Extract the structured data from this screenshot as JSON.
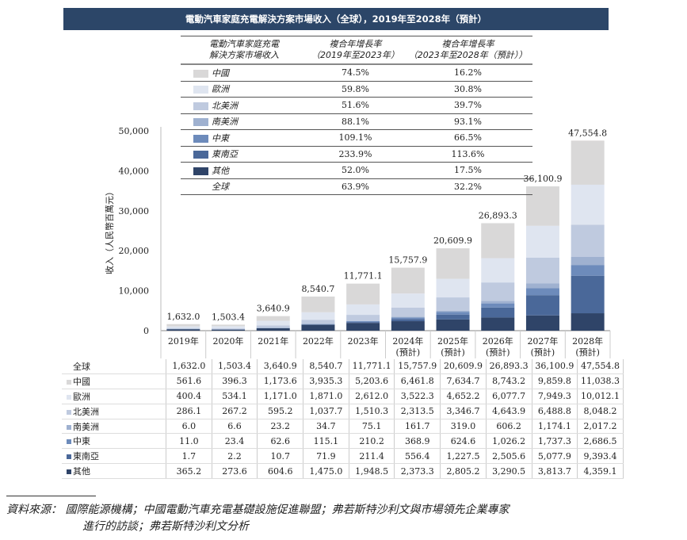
{
  "chart_data": {
    "type": "bar",
    "stacked": true,
    "title": "電動汽車家庭充電解決方案市場收入（全球），2019年至2028年（預計）",
    "ylabel": "收入（人民幣百萬元）",
    "ylim": [
      0,
      50000
    ],
    "yticks": [
      "0",
      "10,000",
      "20,000",
      "30,000",
      "40,000",
      "50,000"
    ],
    "ytick_values": [
      0,
      10000,
      20000,
      30000,
      40000,
      50000
    ],
    "categories": [
      "2019年",
      "2020年",
      "2021年",
      "2022年",
      "2023年",
      "2024年\n(預計)",
      "2025年\n(預計)",
      "2026年\n(預計)",
      "2027年\n(預計)",
      "2028年\n(預計)"
    ],
    "category_lines": [
      [
        "2019年",
        ""
      ],
      [
        "2020年",
        ""
      ],
      [
        "2021年",
        ""
      ],
      [
        "2022年",
        ""
      ],
      [
        "2023年",
        ""
      ],
      [
        "2024年",
        "(預計)"
      ],
      [
        "2025年",
        "(預計)"
      ],
      [
        "2026年",
        "(預計)"
      ],
      [
        "2027年",
        "(預計)"
      ],
      [
        "2028年",
        "(預計)"
      ]
    ],
    "totals": [
      1632.0,
      1503.4,
      3640.9,
      8540.7,
      11771.1,
      15757.9,
      20609.9,
      26893.3,
      36100.9,
      47554.8
    ],
    "total_labels": [
      "1,632.0",
      "1,503.4",
      "3,640.9",
      "8,540.7",
      "11,771.1",
      "15,757.9",
      "20,609.9",
      "26,893.3",
      "36,100.9",
      "47,554.8"
    ],
    "series": [
      {
        "name": "其他",
        "color": "#2f4468",
        "values": [
          365.2,
          273.6,
          604.6,
          1475.0,
          1948.5,
          2373.3,
          2805.2,
          3290.5,
          3813.7,
          4359.1
        ]
      },
      {
        "name": "東南亞",
        "color": "#4a6899",
        "values": [
          1.7,
          2.2,
          10.7,
          71.9,
          211.4,
          556.4,
          1227.5,
          2505.6,
          5077.9,
          9393.4
        ]
      },
      {
        "name": "中東",
        "color": "#6d8bbb",
        "values": [
          11.0,
          23.4,
          62.6,
          115.1,
          210.2,
          368.9,
          624.6,
          1026.2,
          1737.3,
          2686.5
        ]
      },
      {
        "name": "南美洲",
        "color": "#9fb1d0",
        "values": [
          6.0,
          6.6,
          23.2,
          34.7,
          75.1,
          161.7,
          319.0,
          606.2,
          1174.1,
          2017.2
        ]
      },
      {
        "name": "北美洲",
        "color": "#bfcadf",
        "values": [
          286.1,
          267.2,
          595.2,
          1037.7,
          1510.3,
          2313.5,
          3346.7,
          4643.9,
          6488.8,
          8048.2
        ]
      },
      {
        "name": "歐洲",
        "color": "#dfe5f0",
        "values": [
          400.4,
          534.1,
          1171.0,
          1871.0,
          2612.0,
          3522.3,
          4652.2,
          6077.7,
          7949.3,
          10012.1
        ]
      },
      {
        "name": "中國",
        "color": "#d9d8d8",
        "values": [
          561.6,
          396.3,
          1173.6,
          3935.3,
          5203.6,
          6461.8,
          7634.7,
          8743.2,
          9859.8,
          11038.3
        ]
      }
    ]
  },
  "legend_table": {
    "headers": [
      "電動汽車家庭充電\n解決方案市場收入",
      "複合年增長率\n（2019年至2023年）",
      "複合年增長率\n（2023年至2028年（預計））"
    ],
    "rows": [
      {
        "name": "中國",
        "color": "#d9d8d8",
        "cagr1": "74.5%",
        "cagr2": "16.2%"
      },
      {
        "name": "歐洲",
        "color": "#dfe5f0",
        "cagr1": "59.8%",
        "cagr2": "30.8%"
      },
      {
        "name": "北美洲",
        "color": "#bfcadf",
        "cagr1": "51.6%",
        "cagr2": "39.7%"
      },
      {
        "name": "南美洲",
        "color": "#9fb1d0",
        "cagr1": "88.1%",
        "cagr2": "93.1%"
      },
      {
        "name": "中東",
        "color": "#6d8bbb",
        "cagr1": "109.1%",
        "cagr2": "66.5%"
      },
      {
        "name": "東南亞",
        "color": "#4a6899",
        "cagr1": "233.9%",
        "cagr2": "113.6%"
      },
      {
        "name": "其他",
        "color": "#2f4468",
        "cagr1": "52.0%",
        "cagr2": "17.5%"
      },
      {
        "name": "全球",
        "color": null,
        "cagr1": "63.9%",
        "cagr2": "32.2%"
      }
    ]
  },
  "data_table": [
    {
      "name": "全球",
      "color": null,
      "values": [
        "1,632.0",
        "1,503.4",
        "3,640.9",
        "8,540.7",
        "11,771.1",
        "15,757.9",
        "20,609.9",
        "26,893.3",
        "36,100.9",
        "47,554.8"
      ]
    },
    {
      "name": "中國",
      "color": "#d9d8d8",
      "values": [
        "561.6",
        "396.3",
        "1,173.6",
        "3,935.3",
        "5,203.6",
        "6,461.8",
        "7,634.7",
        "8,743.2",
        "9,859.8",
        "11,038.3"
      ]
    },
    {
      "name": "歐洲",
      "color": "#dfe5f0",
      "values": [
        "400.4",
        "534.1",
        "1,171.0",
        "1,871.0",
        "2,612.0",
        "3,522.3",
        "4,652.2",
        "6,077.7",
        "7,949.3",
        "10,012.1"
      ]
    },
    {
      "name": "北美洲",
      "color": "#bfcadf",
      "values": [
        "286.1",
        "267.2",
        "595.2",
        "1,037.7",
        "1,510.3",
        "2,313.5",
        "3,346.7",
        "4,643.9",
        "6,488.8",
        "8,048.2"
      ]
    },
    {
      "name": "南美洲",
      "color": "#9fb1d0",
      "values": [
        "6.0",
        "6.6",
        "23.2",
        "34.7",
        "75.1",
        "161.7",
        "319.0",
        "606.2",
        "1,174.1",
        "2,017.2"
      ]
    },
    {
      "name": "中東",
      "color": "#6d8bbb",
      "values": [
        "11.0",
        "23.4",
        "62.6",
        "115.1",
        "210.2",
        "368.9",
        "624.6",
        "1,026.2",
        "1,737.3",
        "2,686.5"
      ]
    },
    {
      "name": "東南亞",
      "color": "#4a6899",
      "values": [
        "1.7",
        "2.2",
        "10.7",
        "71.9",
        "211.4",
        "556.4",
        "1,227.5",
        "2,505.6",
        "5,077.9",
        "9,393.4"
      ]
    },
    {
      "name": "其他",
      "color": "#2f4468",
      "values": [
        "365.2",
        "273.6",
        "604.6",
        "1,475.0",
        "1,948.5",
        "2,373.3",
        "2,805.2",
        "3,290.5",
        "3,813.7",
        "4,359.1"
      ]
    }
  ],
  "source": {
    "line1": "資料來源： 國際能源機構；中國電動汽車充電基礎設施促進聯盟；弗若斯特沙利文與市場領先企業專家",
    "line2": "進行的訪談；弗若斯特沙利文分析"
  }
}
